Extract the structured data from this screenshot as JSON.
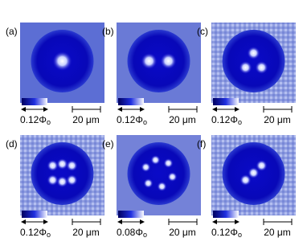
{
  "panels": [
    {
      "label": "(a)",
      "flux": "0.12Φ",
      "flux_subscript": "o",
      "scale": "20 μm"
    },
    {
      "label": "(b)",
      "flux": "0.12Φ",
      "flux_subscript": "o",
      "scale": "20 μm"
    },
    {
      "label": "(c)",
      "flux": "0.12Φ",
      "flux_subscript": "o",
      "scale": "20 μm"
    },
    {
      "label": "(d)",
      "flux": "0.12Φ",
      "flux_subscript": "o",
      "scale": "20 μm"
    },
    {
      "label": "(e)",
      "flux": "0.08Φ",
      "flux_subscript": "o",
      "scale": "20 μm"
    },
    {
      "label": "(f)",
      "flux": "0.12Φ",
      "flux_subscript": "o",
      "scale": "20 μm"
    }
  ]
}
